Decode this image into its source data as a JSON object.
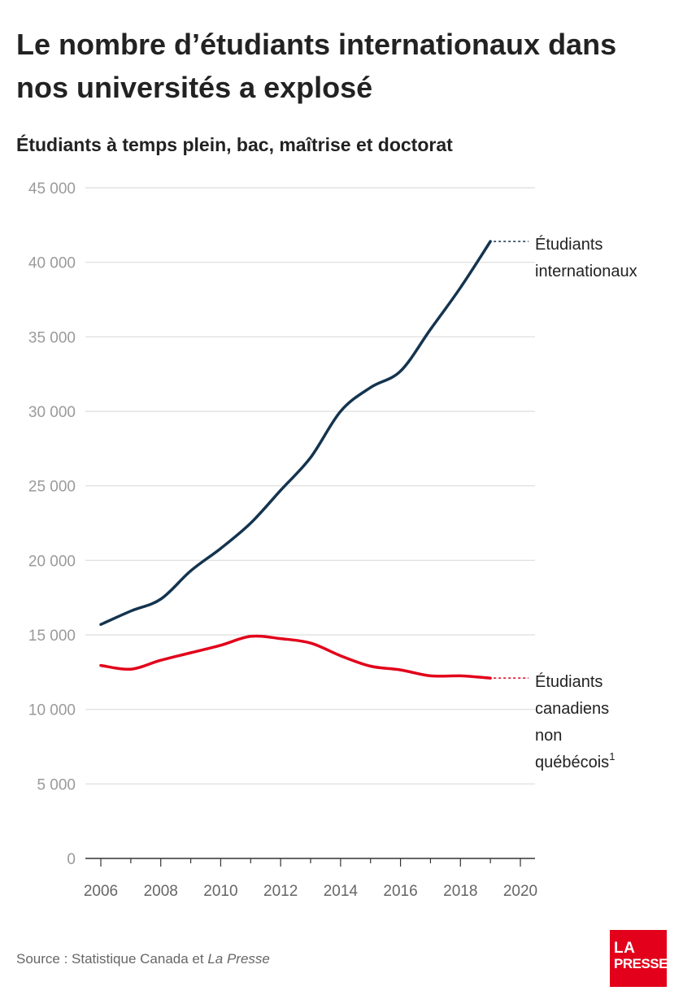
{
  "header": {
    "title": "Le nombre d’étudiants internationaux dans nos universités a explosé",
    "subtitle": "Étudiants à temps plein, bac, maîtrise et doctorat"
  },
  "source": {
    "prefix": "Source : Statistique Canada et ",
    "italic": "La Presse"
  },
  "logo": {
    "line1": "LA",
    "line2": "PRESSE",
    "color": "#e2001a"
  },
  "chart_data": {
    "type": "line",
    "title": "Le nombre d’étudiants internationaux dans nos universités a explosé",
    "subtitle": "Étudiants à temps plein, bac, maîtrise et doctorat",
    "xlabel": "",
    "ylabel": "",
    "xlim": [
      2006,
      2020
    ],
    "ylim": [
      0,
      45000
    ],
    "x_ticks": [
      2006,
      2008,
      2010,
      2012,
      2014,
      2016,
      2018,
      2020
    ],
    "x_tick_labels": [
      "2006",
      "2008",
      "2010",
      "2012",
      "2014",
      "2016",
      "2018",
      "2020"
    ],
    "y_ticks": [
      0,
      5000,
      10000,
      15000,
      20000,
      25000,
      30000,
      35000,
      40000,
      45000
    ],
    "y_tick_labels": [
      "0",
      "5 000",
      "10 000",
      "15 000",
      "20 000",
      "25 000",
      "30 000",
      "35 000",
      "40 000",
      "45 000"
    ],
    "grid": true,
    "legend": "direct labels at right end of lines",
    "series": [
      {
        "name": "Étudiants internationaux",
        "label_lines": [
          "Étudiants",
          "internationaux"
        ],
        "color": "#14344f",
        "x": [
          2006,
          2007,
          2008,
          2009,
          2010,
          2011,
          2012,
          2013,
          2014,
          2015,
          2016,
          2017,
          2018,
          2019
        ],
        "values": [
          15700,
          16600,
          17400,
          19300,
          20800,
          22500,
          24700,
          26900,
          30000,
          31600,
          32700,
          35500,
          38300,
          41400
        ]
      },
      {
        "name": "Étudiants canadiens non québécois",
        "label_lines": [
          "Étudiants",
          "canadiens",
          "non",
          "québécois"
        ],
        "footnote": "1",
        "color": "#e2001a",
        "x": [
          2006,
          2007,
          2008,
          2009,
          2010,
          2011,
          2012,
          2013,
          2014,
          2015,
          2016,
          2017,
          2018,
          2019
        ],
        "values": [
          12950,
          12700,
          13300,
          13800,
          14300,
          14900,
          14750,
          14450,
          13600,
          12900,
          12650,
          12250,
          12250,
          12100
        ]
      }
    ]
  }
}
